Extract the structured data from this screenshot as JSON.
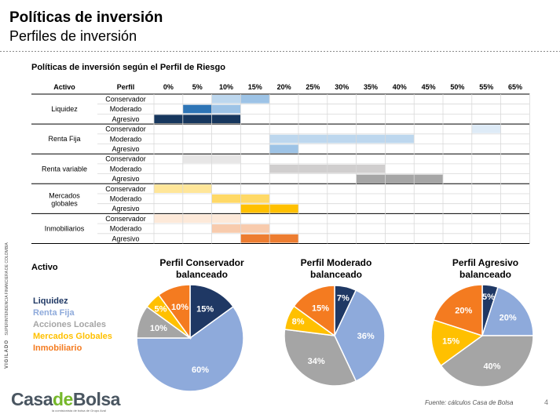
{
  "header": {
    "title": "Políticas de inversión",
    "subtitle": "Perfiles de inversión"
  },
  "table_section_title": "Políticas de inversión según el Perfil de Riesgo",
  "colors": {
    "navy": "#17375e",
    "mid_blue": "#2e75b6",
    "light_blue": "#9dc3e6",
    "pale_blue": "#bdd7ee",
    "very_pale_blue": "#deebf7",
    "pale_gray": "#e7e6e6",
    "light_gray": "#d0cece",
    "gray": "#a6a6a6",
    "pale_yellow": "#ffe699",
    "yellow": "#ffd966",
    "gold": "#ffc000",
    "peach": "#f8cbad",
    "orange": "#f4b183",
    "dark_orange": "#ed7d31",
    "pie_liquidez": "#1f3864",
    "pie_renta_fija": "#8eaadb",
    "pie_acciones": "#a5a5a5",
    "pie_mercados": "#ffc000",
    "pie_inmobiliario": "#f47b20"
  },
  "chart_data": [
    {
      "type": "table",
      "column_headers": [
        "Activo",
        "Perfil",
        "0%",
        "5%",
        "10%",
        "15%",
        "20%",
        "25%",
        "30%",
        "35%",
        "40%",
        "45%",
        "50%",
        "55%",
        "65%"
      ],
      "profiles": [
        "Conservador",
        "Moderado",
        "Agresivo"
      ],
      "groups": [
        {
          "label": "Liquidez",
          "rows": [
            {
              "perfil": "Conservador",
              "range": [
                10,
                20
              ],
              "shades": [
                "pale_blue",
                "light_blue"
              ]
            },
            {
              "perfil": "Moderado",
              "range": [
                5,
                15
              ],
              "shades": [
                "mid_blue",
                "light_blue"
              ]
            },
            {
              "perfil": "Agresivo",
              "range": [
                0,
                15
              ],
              "shades": [
                "navy",
                "navy"
              ]
            }
          ]
        },
        {
          "label": "Renta Fija",
          "rows": [
            {
              "perfil": "Conservador",
              "range": [
                55,
                65
              ],
              "shades": [
                "very_pale_blue",
                "very_pale_blue"
              ]
            },
            {
              "perfil": "Moderado",
              "range": [
                20,
                45
              ],
              "shades": [
                "pale_blue",
                "pale_blue"
              ]
            },
            {
              "perfil": "Agresivo",
              "range": [
                20,
                25
              ],
              "shades": [
                "light_blue",
                "light_blue"
              ]
            }
          ]
        },
        {
          "label": "Renta variable",
          "rows": [
            {
              "perfil": "Conservador",
              "range": [
                5,
                15
              ],
              "shades": [
                "pale_gray",
                "pale_gray"
              ]
            },
            {
              "perfil": "Moderado",
              "range": [
                20,
                40
              ],
              "shades": [
                "light_gray",
                "light_gray"
              ]
            },
            {
              "perfil": "Agresivo",
              "range": [
                35,
                50
              ],
              "shades": [
                "gray",
                "gray"
              ]
            }
          ]
        },
        {
          "label": "Mercados globales",
          "rows": [
            {
              "perfil": "Conservador",
              "range": [
                0,
                10
              ],
              "shades": [
                "pale_yellow",
                "pale_yellow"
              ]
            },
            {
              "perfil": "Moderado",
              "range": [
                10,
                20
              ],
              "shades": [
                "yellow",
                "yellow"
              ]
            },
            {
              "perfil": "Agresivo",
              "range": [
                15,
                25
              ],
              "shades": [
                "gold",
                "gold"
              ]
            }
          ]
        },
        {
          "label": "Inmobiliarios",
          "rows": [
            {
              "perfil": "Conservador",
              "range": [
                0,
                15
              ],
              "shades": [
                "#fde9d9",
                "#fde9d9"
              ]
            },
            {
              "perfil": "Moderado",
              "range": [
                10,
                20
              ],
              "shades": [
                "peach",
                "peach"
              ]
            },
            {
              "perfil": "Agresivo",
              "range": [
                15,
                25
              ],
              "shades": [
                "dark_orange",
                "dark_orange"
              ]
            }
          ]
        }
      ]
    },
    {
      "type": "pie",
      "title": "Perfil Conservador balanceado",
      "slices": [
        {
          "name": "Liquidez",
          "value": 15,
          "label": "15%"
        },
        {
          "name": "Renta Fija",
          "value": 60,
          "label": "60%"
        },
        {
          "name": "Acciones Locales",
          "value": 10,
          "label": "10%"
        },
        {
          "name": "Mercados Globales",
          "value": 5,
          "label": "5%"
        },
        {
          "name": "Inmobiliario",
          "value": 10,
          "label": "10%"
        }
      ]
    },
    {
      "type": "pie",
      "title": "Perfil Moderado balanceado",
      "slices": [
        {
          "name": "Liquidez",
          "value": 7,
          "label": "7%"
        },
        {
          "name": "Renta Fija",
          "value": 36,
          "label": "36%"
        },
        {
          "name": "Acciones Locales",
          "value": 34,
          "label": "34%"
        },
        {
          "name": "Mercados Globales",
          "value": 8,
          "label": "8%"
        },
        {
          "name": "Inmobiliario",
          "value": 15,
          "label": "15%"
        }
      ]
    },
    {
      "type": "pie",
      "title": "Perfil Agresivo balanceado",
      "slices": [
        {
          "name": "Liquidez",
          "value": 5,
          "label": "5%"
        },
        {
          "name": "Renta Fija",
          "value": 20,
          "label": "20%"
        },
        {
          "name": "Acciones Locales",
          "value": 40,
          "label": "40%"
        },
        {
          "name": "Mercados Globales",
          "value": 15,
          "label": "15%"
        },
        {
          "name": "Inmobiliario",
          "value": 20,
          "label": "20%"
        }
      ]
    }
  ],
  "legend": {
    "title": "Activo",
    "items": [
      "Liquidez",
      "Renta Fija",
      "Acciones Locales",
      "Mercados Globales",
      "Inmobiliario"
    ]
  },
  "side_text": {
    "brand": "VIGILADO",
    "regulator": "SUPERINTENDENCIA FINANCIERA DE COLOMBIA"
  },
  "footer": {
    "logo_part1": "Casa",
    "logo_part2": "de",
    "logo_part3": "Bolsa",
    "logo_tagline": "la comisionista de bolsa de Grupo Aval",
    "source": "Fuente: cálculos Casa de Bolsa",
    "page_number": "4"
  }
}
